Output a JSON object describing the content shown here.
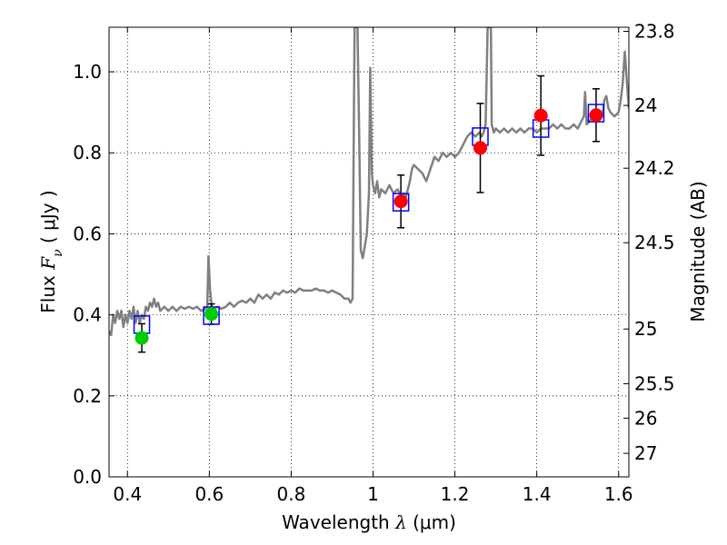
{
  "chart_data": {
    "type": "scatter",
    "xlabel": {
      "prefix": "Wavelength  ",
      "symbol": "λ",
      "suffix": " (μm)"
    },
    "ylabel": {
      "prefix": "Flux  ",
      "symbol": "F",
      "subscript": "ν",
      "suffix": "  ( μJy )"
    },
    "ylabel_right": "Magnitude (AB)",
    "xlim": [
      0.355,
      1.625
    ],
    "ylim": [
      0.0,
      1.11
    ],
    "grid": true,
    "x_ticks": [
      {
        "value": 0.4,
        "label": "0.4"
      },
      {
        "value": 0.6,
        "label": "0.6"
      },
      {
        "value": 0.8,
        "label": "0.8"
      },
      {
        "value": 1.0,
        "label": "1"
      },
      {
        "value": 1.2,
        "label": "1.2"
      },
      {
        "value": 1.4,
        "label": "1.4"
      },
      {
        "value": 1.6,
        "label": "1.6"
      }
    ],
    "y_ticks": [
      {
        "value": 0.0,
        "label": "0.0"
      },
      {
        "value": 0.2,
        "label": "0.2"
      },
      {
        "value": 0.4,
        "label": "0.4"
      },
      {
        "value": 0.6,
        "label": "0.6"
      },
      {
        "value": 0.8,
        "label": "0.8"
      },
      {
        "value": 1.0,
        "label": "1.0"
      }
    ],
    "y2_ticks": [
      {
        "flux": 1.1,
        "label": "23.8"
      },
      {
        "flux": 0.917,
        "label": "24"
      },
      {
        "flux": 0.762,
        "label": "24.2"
      },
      {
        "flux": 0.578,
        "label": "24.5"
      },
      {
        "flux": 0.365,
        "label": "25"
      },
      {
        "flux": 0.23,
        "label": "25.5"
      },
      {
        "flux": 0.145,
        "label": "26"
      },
      {
        "flux": 0.058,
        "label": "27"
      }
    ],
    "colors": {
      "spectrum": "#808080",
      "model_box": "#0000ff",
      "green_obs": "#00cc00",
      "red_obs": "#ff0000",
      "errorbar": "#000000"
    },
    "spectrum": [
      [
        0.355,
        0.36
      ],
      [
        0.36,
        0.35
      ],
      [
        0.365,
        0.4
      ],
      [
        0.37,
        0.38
      ],
      [
        0.375,
        0.41
      ],
      [
        0.38,
        0.39
      ],
      [
        0.385,
        0.41
      ],
      [
        0.39,
        0.37
      ],
      [
        0.395,
        0.4
      ],
      [
        0.4,
        0.38
      ],
      [
        0.405,
        0.41
      ],
      [
        0.41,
        0.39
      ],
      [
        0.415,
        0.42
      ],
      [
        0.42,
        0.38
      ],
      [
        0.425,
        0.41
      ],
      [
        0.43,
        0.38
      ],
      [
        0.435,
        0.4
      ],
      [
        0.44,
        0.39
      ],
      [
        0.445,
        0.42
      ],
      [
        0.45,
        0.41
      ],
      [
        0.455,
        0.43
      ],
      [
        0.46,
        0.42
      ],
      [
        0.465,
        0.44
      ],
      [
        0.47,
        0.42
      ],
      [
        0.475,
        0.43
      ],
      [
        0.48,
        0.41
      ],
      [
        0.49,
        0.42
      ],
      [
        0.5,
        0.41
      ],
      [
        0.51,
        0.42
      ],
      [
        0.52,
        0.41
      ],
      [
        0.53,
        0.42
      ],
      [
        0.54,
        0.415
      ],
      [
        0.55,
        0.42
      ],
      [
        0.56,
        0.415
      ],
      [
        0.57,
        0.42
      ],
      [
        0.58,
        0.41
      ],
      [
        0.59,
        0.415
      ],
      [
        0.595,
        0.42
      ],
      [
        0.598,
        0.545
      ],
      [
        0.602,
        0.46
      ],
      [
        0.606,
        0.42
      ],
      [
        0.61,
        0.415
      ],
      [
        0.62,
        0.42
      ],
      [
        0.63,
        0.415
      ],
      [
        0.64,
        0.42
      ],
      [
        0.65,
        0.43
      ],
      [
        0.66,
        0.42
      ],
      [
        0.67,
        0.43
      ],
      [
        0.68,
        0.435
      ],
      [
        0.69,
        0.43
      ],
      [
        0.7,
        0.44
      ],
      [
        0.71,
        0.43
      ],
      [
        0.72,
        0.45
      ],
      [
        0.73,
        0.44
      ],
      [
        0.74,
        0.45
      ],
      [
        0.75,
        0.44
      ],
      [
        0.76,
        0.455
      ],
      [
        0.77,
        0.45
      ],
      [
        0.78,
        0.46
      ],
      [
        0.79,
        0.455
      ],
      [
        0.8,
        0.46
      ],
      [
        0.81,
        0.455
      ],
      [
        0.82,
        0.465
      ],
      [
        0.83,
        0.46
      ],
      [
        0.84,
        0.46
      ],
      [
        0.85,
        0.46
      ],
      [
        0.86,
        0.465
      ],
      [
        0.87,
        0.46
      ],
      [
        0.88,
        0.46
      ],
      [
        0.89,
        0.455
      ],
      [
        0.9,
        0.46
      ],
      [
        0.91,
        0.455
      ],
      [
        0.92,
        0.45
      ],
      [
        0.93,
        0.44
      ],
      [
        0.94,
        0.44
      ],
      [
        0.945,
        0.43
      ],
      [
        0.95,
        0.44
      ],
      [
        0.953,
        0.85
      ],
      [
        0.955,
        1.11
      ],
      [
        0.962,
        1.11
      ],
      [
        0.966,
        0.85
      ],
      [
        0.97,
        0.56
      ],
      [
        0.975,
        0.54
      ],
      [
        0.98,
        0.57
      ],
      [
        0.985,
        0.6
      ],
      [
        0.99,
        0.7
      ],
      [
        0.993,
        1.01
      ],
      [
        0.997,
        0.75
      ],
      [
        1.0,
        0.72
      ],
      [
        1.005,
        0.7
      ],
      [
        1.01,
        0.73
      ],
      [
        1.015,
        0.69
      ],
      [
        1.02,
        0.71
      ],
      [
        1.03,
        0.7
      ],
      [
        1.04,
        0.72
      ],
      [
        1.05,
        0.7
      ],
      [
        1.06,
        0.71
      ],
      [
        1.07,
        0.69
      ],
      [
        1.075,
        0.7
      ],
      [
        1.08,
        0.69
      ],
      [
        1.085,
        0.71
      ],
      [
        1.09,
        0.73
      ],
      [
        1.095,
        0.76
      ],
      [
        1.1,
        0.77
      ],
      [
        1.11,
        0.76
      ],
      [
        1.12,
        0.75
      ],
      [
        1.13,
        0.73
      ],
      [
        1.14,
        0.76
      ],
      [
        1.15,
        0.79
      ],
      [
        1.16,
        0.78
      ],
      [
        1.17,
        0.8
      ],
      [
        1.18,
        0.79
      ],
      [
        1.19,
        0.8
      ],
      [
        1.2,
        0.79
      ],
      [
        1.21,
        0.8
      ],
      [
        1.22,
        0.82
      ],
      [
        1.23,
        0.84
      ],
      [
        1.24,
        0.85
      ],
      [
        1.25,
        0.84
      ],
      [
        1.26,
        0.85
      ],
      [
        1.265,
        0.84
      ],
      [
        1.27,
        0.85
      ],
      [
        1.275,
        0.87
      ],
      [
        1.28,
        1.11
      ],
      [
        1.288,
        1.11
      ],
      [
        1.29,
        0.87
      ],
      [
        1.295,
        0.85
      ],
      [
        1.3,
        0.86
      ],
      [
        1.31,
        0.85
      ],
      [
        1.32,
        0.86
      ],
      [
        1.33,
        0.85
      ],
      [
        1.34,
        0.86
      ],
      [
        1.35,
        0.85
      ],
      [
        1.36,
        0.86
      ],
      [
        1.37,
        0.85
      ],
      [
        1.38,
        0.86
      ],
      [
        1.39,
        0.86
      ],
      [
        1.4,
        0.85
      ],
      [
        1.41,
        0.86
      ],
      [
        1.42,
        0.86
      ],
      [
        1.43,
        0.86
      ],
      [
        1.44,
        0.87
      ],
      [
        1.45,
        0.86
      ],
      [
        1.46,
        0.87
      ],
      [
        1.47,
        0.86
      ],
      [
        1.48,
        0.86
      ],
      [
        1.49,
        0.87
      ],
      [
        1.5,
        0.86
      ],
      [
        1.51,
        0.88
      ],
      [
        1.515,
        0.89
      ],
      [
        1.518,
        0.95
      ],
      [
        1.522,
        0.87
      ],
      [
        1.53,
        0.88
      ],
      [
        1.54,
        0.89
      ],
      [
        1.55,
        0.88
      ],
      [
        1.56,
        0.89
      ],
      [
        1.565,
        0.93
      ],
      [
        1.57,
        0.94
      ],
      [
        1.575,
        0.91
      ],
      [
        1.58,
        0.9
      ],
      [
        1.59,
        0.89
      ],
      [
        1.6,
        0.9
      ],
      [
        1.605,
        0.93
      ],
      [
        1.61,
        0.97
      ],
      [
        1.615,
        1.05
      ],
      [
        1.62,
        0.98
      ],
      [
        1.625,
        0.91
      ]
    ],
    "model_points": [
      {
        "x": 0.435,
        "y": 0.376
      },
      {
        "x": 0.605,
        "y": 0.398
      },
      {
        "x": 1.068,
        "y": 0.678
      },
      {
        "x": 1.262,
        "y": 0.84
      },
      {
        "x": 1.41,
        "y": 0.86
      },
      {
        "x": 1.545,
        "y": 0.898
      }
    ],
    "observed_points": [
      {
        "x": 0.435,
        "y": 0.343,
        "err": 0.035,
        "color": "green"
      },
      {
        "x": 0.605,
        "y": 0.402,
        "err": 0.025,
        "color": "green"
      },
      {
        "x": 1.068,
        "y": 0.68,
        "err": 0.065,
        "color": "red"
      },
      {
        "x": 1.262,
        "y": 0.812,
        "err": 0.11,
        "color": "red"
      },
      {
        "x": 1.41,
        "y": 0.892,
        "err": 0.098,
        "color": "red"
      },
      {
        "x": 1.545,
        "y": 0.893,
        "err": 0.065,
        "color": "red"
      }
    ]
  }
}
